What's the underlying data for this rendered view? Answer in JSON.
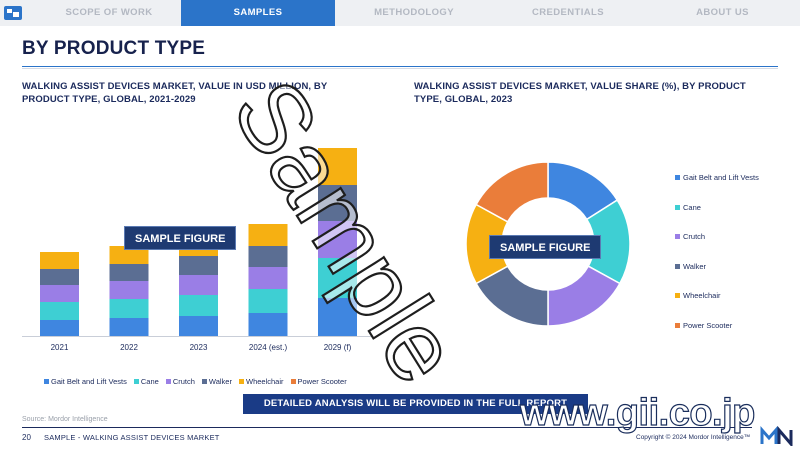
{
  "nav": {
    "tabs": [
      {
        "label": "SCOPE OF WORK",
        "active": false
      },
      {
        "label": "SAMPLES",
        "active": true
      },
      {
        "label": "METHODOLOGY",
        "active": false
      },
      {
        "label": "CREDENTIALS",
        "active": false
      },
      {
        "label": "ABOUT US",
        "active": false
      }
    ]
  },
  "page": {
    "title": "BY PRODUCT TYPE",
    "badge_label": "SAMPLE FIGURE",
    "detail_banner": "DETAILED ANALYSIS WILL BE PROVIDED IN THE FULL REPORT",
    "source": "Source: Mordor Intelligence",
    "page_number": "20",
    "footer_text": "SAMPLE - WALKING ASSIST DEVICES MARKET",
    "copyright": "Copyright © 2024 Mordor Intelligence™",
    "watermark": "Sample",
    "gii_text": "www.gii.co.jp"
  },
  "colors": {
    "gait_belt": "#3f86e0",
    "cane": "#3ecfd3",
    "crutch": "#9a7ee6",
    "walker": "#5b6e93",
    "wheelchair": "#f6b012",
    "power_scooter": "#ea7d3a",
    "nav_active": "#2b74c9",
    "banner": "#1a3b86"
  },
  "chart_data": [
    {
      "type": "bar",
      "stacked": true,
      "title": "WALKING ASSIST DEVICES MARKET, VALUE IN USD MILLION, BY PRODUCT TYPE, GLOBAL, 2021-2029",
      "categories": [
        "2021",
        "2022",
        "2023",
        "2024 (est.)",
        "2029 (f)"
      ],
      "series": [
        {
          "name": "Gait Belt and Lift Vests",
          "color_key": "gait_belt",
          "values": [
            16,
            18,
            20,
            23,
            38
          ]
        },
        {
          "name": "Cane",
          "color_key": "cane",
          "values": [
            18,
            19,
            21,
            24,
            40
          ]
        },
        {
          "name": "Crutch",
          "color_key": "crutch",
          "values": [
            17,
            18,
            20,
            22,
            37
          ]
        },
        {
          "name": "Walker",
          "color_key": "walker",
          "values": [
            16,
            17,
            19,
            21,
            36
          ]
        },
        {
          "name": "Wheelchair",
          "color_key": "wheelchair",
          "values": [
            17,
            18,
            20,
            22,
            37
          ]
        },
        {
          "name": "Power Scooter",
          "color_key": "power_scooter",
          "values": [
            0,
            0,
            0,
            0,
            0
          ]
        }
      ],
      "ylim": [
        0,
        200
      ],
      "grid": false,
      "legend": "bottom"
    },
    {
      "type": "pie",
      "donut": true,
      "title": "WALKING ASSIST DEVICES MARKET, VALUE SHARE (%), BY PRODUCT TYPE, GLOBAL, 2023",
      "labels": [
        "Gait Belt and Lift Vests",
        "Cane",
        "Crutch",
        "Walker",
        "Wheelchair",
        "Power Scooter"
      ],
      "color_keys": [
        "gait_belt",
        "cane",
        "crutch",
        "walker",
        "wheelchair",
        "power_scooter"
      ],
      "values": [
        16,
        17,
        17,
        17,
        16,
        17
      ],
      "legend": "right"
    }
  ]
}
